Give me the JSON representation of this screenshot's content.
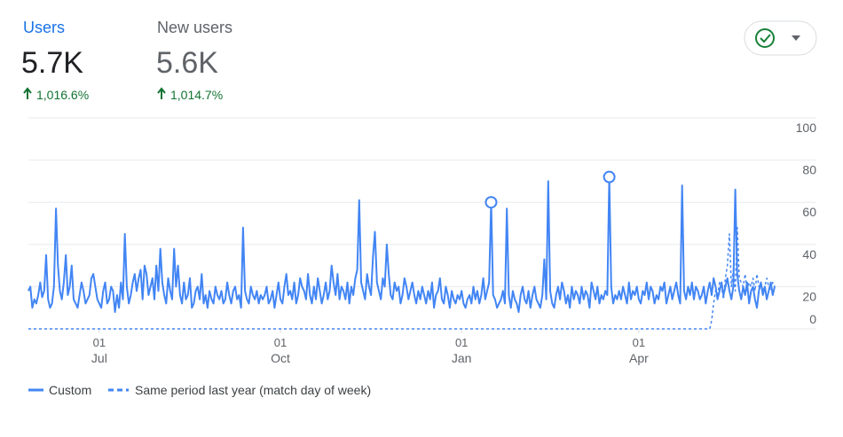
{
  "metrics": [
    {
      "label": "Users",
      "value": "5.7K",
      "change": "1,016.6%"
    },
    {
      "label": "New users",
      "value": "5.6K",
      "change": "1,014.7%"
    }
  ],
  "chart_data": {
    "type": "line",
    "xlim": [
      0,
      379
    ],
    "xticks": [
      {
        "value": 36,
        "label": "01",
        "month": "Jul"
      },
      {
        "value": 128,
        "label": "01",
        "month": "Oct"
      },
      {
        "value": 220,
        "label": "01",
        "month": "Jan"
      },
      {
        "value": 310,
        "label": "01",
        "month": "Apr"
      }
    ],
    "ylim": [
      0,
      100
    ],
    "yticks": [
      0,
      20,
      40,
      60,
      80,
      100
    ],
    "grid": true,
    "annotation_indices": [
      235,
      295
    ],
    "series": [
      {
        "name": "Custom",
        "color": "#4285f4",
        "dash": false,
        "values": [
          18,
          20,
          10,
          14,
          12,
          16,
          22,
          15,
          18,
          35,
          14,
          10,
          12,
          20,
          57,
          30,
          18,
          14,
          22,
          35,
          16,
          20,
          30,
          14,
          12,
          10,
          16,
          22,
          18,
          12,
          14,
          16,
          24,
          26,
          20,
          14,
          12,
          10,
          18,
          22,
          12,
          14,
          20,
          18,
          8,
          16,
          10,
          22,
          14,
          45,
          20,
          12,
          16,
          22,
          26,
          18,
          24,
          28,
          14,
          30,
          26,
          16,
          20,
          24,
          14,
          30,
          18,
          38,
          22,
          16,
          12,
          24,
          18,
          14,
          38,
          20,
          30,
          16,
          12,
          22,
          14,
          16,
          24,
          10,
          12,
          18,
          20,
          14,
          26,
          12,
          16,
          10,
          18,
          14,
          12,
          20,
          16,
          14,
          18,
          12,
          14,
          22,
          16,
          12,
          18,
          20,
          14,
          16,
          10,
          48,
          18,
          14,
          12,
          20,
          16,
          14,
          18,
          12,
          16,
          14,
          16,
          20,
          12,
          14,
          18,
          10,
          16,
          22,
          14,
          12,
          20,
          26,
          16,
          18,
          14,
          22,
          12,
          16,
          24,
          20,
          18,
          14,
          26,
          16,
          12,
          20,
          14,
          24,
          18,
          12,
          16,
          22,
          14,
          18,
          30,
          22,
          16,
          26,
          14,
          20,
          18,
          14,
          22,
          12,
          20,
          16,
          24,
          28,
          61,
          22,
          18,
          14,
          26,
          20,
          16,
          34,
          46,
          22,
          18,
          14,
          24,
          20,
          40,
          26,
          16,
          14,
          22,
          18,
          20,
          12,
          16,
          24,
          20,
          14,
          18,
          22,
          16,
          12,
          18,
          14,
          20,
          16,
          12,
          18,
          14,
          22,
          10,
          16,
          18,
          24,
          14,
          12,
          20,
          16,
          10,
          18,
          14,
          12,
          16,
          14,
          18,
          12,
          10,
          14,
          16,
          12,
          20,
          14,
          18,
          12,
          16,
          24,
          14,
          18,
          22,
          60,
          16,
          14,
          10,
          12,
          14,
          18,
          12,
          57,
          16,
          10,
          18,
          14,
          12,
          8,
          16,
          20,
          14,
          12,
          18,
          10,
          16,
          20,
          14,
          12,
          10,
          16,
          33,
          14,
          70,
          18,
          12,
          10,
          16,
          20,
          14,
          22,
          18,
          12,
          16,
          10,
          20,
          14,
          18,
          16,
          12,
          20,
          14,
          18,
          16,
          10,
          22,
          18,
          14,
          20,
          12,
          16,
          14,
          18,
          16,
          72,
          20,
          12,
          16,
          14,
          18,
          14,
          20,
          16,
          12,
          22,
          14,
          18,
          16,
          20,
          14,
          12,
          18,
          16,
          22,
          14,
          20,
          18,
          12,
          16,
          14,
          20,
          18,
          22,
          12,
          16,
          20,
          14,
          18,
          22,
          16,
          12,
          68,
          18,
          14,
          20,
          16,
          22,
          14,
          20,
          18,
          14,
          16,
          20,
          12,
          18,
          22,
          16,
          24,
          20,
          14,
          18,
          22,
          16,
          20,
          24,
          18,
          14,
          20,
          66,
          26,
          18,
          14,
          20,
          16,
          22,
          12,
          18,
          20,
          14,
          10,
          18,
          22,
          16,
          20,
          14,
          18,
          22,
          16,
          20
        ]
      },
      {
        "name": "Same period last year (match day of week)",
        "color": "#4285f4",
        "dash": true,
        "values": [
          0,
          0,
          0,
          0,
          0,
          0,
          0,
          0,
          0,
          0,
          0,
          0,
          0,
          0,
          0,
          0,
          0,
          0,
          0,
          0,
          0,
          0,
          0,
          0,
          0,
          0,
          0,
          0,
          0,
          0,
          0,
          0,
          0,
          0,
          0,
          0,
          0,
          0,
          0,
          0,
          0,
          0,
          0,
          0,
          0,
          0,
          0,
          0,
          0,
          0,
          0,
          0,
          0,
          0,
          0,
          0,
          0,
          0,
          0,
          0,
          0,
          0,
          0,
          0,
          0,
          0,
          0,
          0,
          0,
          0,
          0,
          0,
          0,
          0,
          0,
          0,
          0,
          0,
          0,
          0,
          0,
          0,
          0,
          0,
          0,
          0,
          0,
          0,
          0,
          0,
          0,
          0,
          0,
          0,
          0,
          0,
          0,
          0,
          0,
          0,
          0,
          0,
          0,
          0,
          0,
          0,
          0,
          0,
          0,
          0,
          0,
          0,
          0,
          0,
          0,
          0,
          0,
          0,
          0,
          0,
          0,
          0,
          0,
          0,
          0,
          0,
          0,
          0,
          0,
          0,
          0,
          0,
          0,
          0,
          0,
          0,
          0,
          0,
          0,
          0,
          0,
          0,
          0,
          0,
          0,
          0,
          0,
          0,
          0,
          0,
          0,
          0,
          0,
          0,
          0,
          0,
          0,
          0,
          0,
          0,
          0,
          0,
          0,
          0,
          0,
          0,
          0,
          0,
          0,
          0,
          0,
          0,
          0,
          0,
          0,
          0,
          0,
          0,
          0,
          0,
          0,
          0,
          0,
          0,
          0,
          0,
          0,
          0,
          0,
          0,
          0,
          0,
          0,
          0,
          0,
          0,
          0,
          0,
          0,
          0,
          0,
          0,
          0,
          0,
          0,
          0,
          0,
          0,
          0,
          0,
          0,
          0,
          0,
          0,
          0,
          0,
          0,
          0,
          0,
          0,
          0,
          0,
          0,
          0,
          0,
          0,
          0,
          0,
          0,
          0,
          0,
          0,
          0,
          0,
          0,
          0,
          0,
          0,
          0,
          0,
          0,
          0,
          0,
          0,
          0,
          0,
          0,
          0,
          0,
          0,
          0,
          0,
          0,
          0,
          0,
          0,
          0,
          0,
          0,
          0,
          0,
          0,
          0,
          0,
          0,
          0,
          0,
          0,
          0,
          0,
          0,
          0,
          0,
          0,
          0,
          0,
          0,
          0,
          0,
          0,
          0,
          0,
          0,
          0,
          0,
          0,
          0,
          0,
          0,
          0,
          0,
          0,
          0,
          0,
          0,
          0,
          0,
          0,
          0,
          0,
          0,
          0,
          0,
          0,
          0,
          0,
          0,
          0,
          0,
          0,
          0,
          0,
          0,
          0,
          0,
          0,
          0,
          0,
          0,
          0,
          0,
          0,
          0,
          0,
          0,
          0,
          0,
          0,
          0,
          0,
          0,
          0,
          0,
          0,
          0,
          0,
          0,
          0,
          0,
          0,
          0,
          0,
          0,
          0,
          0,
          0,
          0,
          4,
          12,
          18,
          16,
          22,
          20,
          14,
          24,
          30,
          45,
          20,
          28,
          18,
          48,
          24,
          22,
          20,
          26,
          18,
          22,
          20,
          24,
          18,
          26,
          20,
          22,
          18,
          20,
          24,
          20,
          18,
          22,
          20
        ]
      }
    ]
  }
}
